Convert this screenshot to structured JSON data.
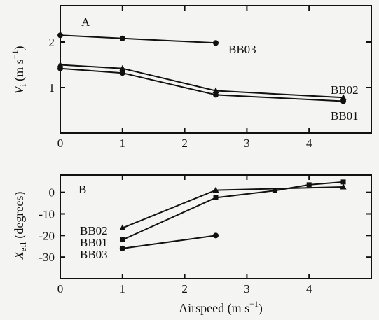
{
  "chart_data": [
    {
      "panel": "A",
      "type": "line",
      "ylabel_main": "V",
      "ylabel_sub": "i",
      "ylabel_unit": "(m s",
      "ylabel_exp": "−1",
      "ylabel_close": ")",
      "xlim": [
        0,
        5
      ],
      "ylim": [
        0,
        2.8
      ],
      "xticks": [
        0,
        1,
        2,
        3,
        4
      ],
      "yticks": [
        1,
        2
      ],
      "series": [
        {
          "name": "BB03",
          "marker": "circle",
          "x": [
            0,
            1,
            2.5
          ],
          "y": [
            2.15,
            2.08,
            1.98
          ]
        },
        {
          "name": "BB02",
          "marker": "triangle",
          "x": [
            0,
            1,
            2.5,
            4.55
          ],
          "y": [
            1.5,
            1.42,
            0.93,
            0.78
          ]
        },
        {
          "name": "BB01",
          "marker": "circle",
          "x": [
            0,
            1,
            2.5,
            4.55
          ],
          "y": [
            1.42,
            1.32,
            0.84,
            0.7
          ]
        }
      ]
    },
    {
      "panel": "B",
      "type": "line",
      "ylabel_main": "X",
      "ylabel_sub": "eff",
      "ylabel_rest": " (degrees)",
      "xlabel_main": "Airspeed (m s",
      "xlabel_exp": "−1",
      "xlabel_close": ")",
      "xlim": [
        0,
        5
      ],
      "ylim": [
        -40,
        8
      ],
      "xticks": [
        0,
        1,
        2,
        3,
        4
      ],
      "yticks": [
        0,
        -10,
        -20,
        -30
      ],
      "ytick_labels": [
        "0",
        "-10",
        "-20",
        "-30"
      ],
      "series": [
        {
          "name": "BB02",
          "marker": "triangle",
          "x": [
            1,
            2.5,
            4.55
          ],
          "y": [
            -16.5,
            1,
            2.5
          ]
        },
        {
          "name": "BB01",
          "marker": "square",
          "x": [
            1,
            2.5,
            3.45,
            4.0,
            4.55
          ],
          "y": [
            -22,
            -2.5,
            0.8,
            3.5,
            4.8
          ]
        },
        {
          "name": "BB03",
          "marker": "circle",
          "x": [
            1,
            2.5
          ],
          "y": [
            -26,
            -20
          ]
        }
      ]
    }
  ]
}
